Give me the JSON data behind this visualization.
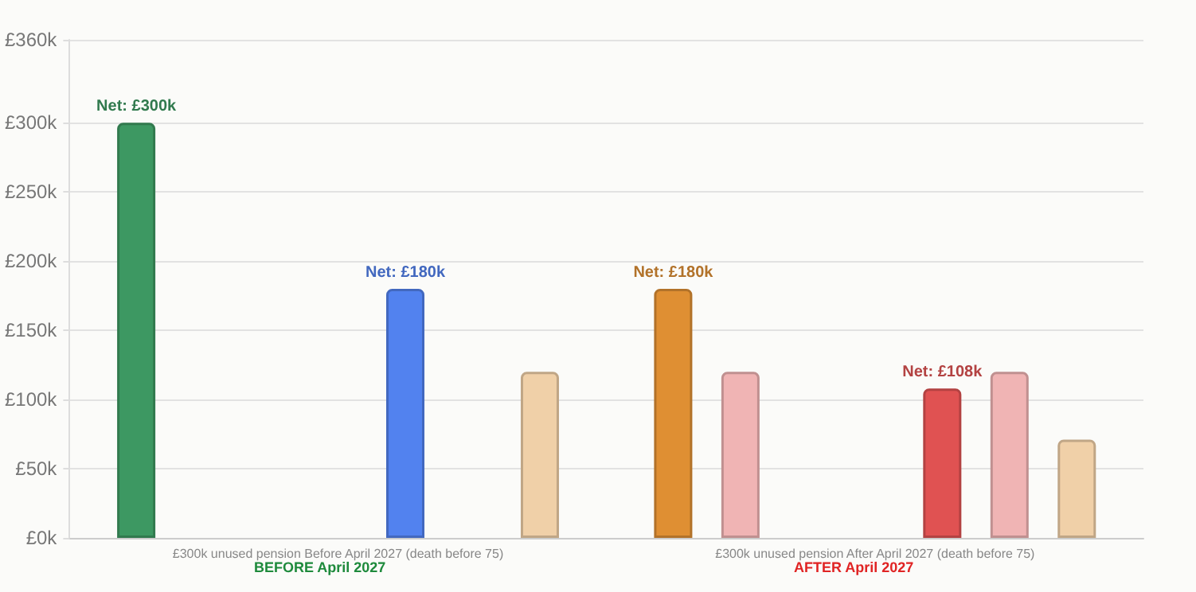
{
  "chart_data": {
    "type": "bar",
    "categories": [
      "£300k unused pension Before April 2027 (death before 75)",
      "£300k unused pension After April 2027 (death before 75)"
    ],
    "series": [
      {
        "values": [
          300,
          180
        ],
        "colors": [
          "#3d9862",
          "#df8f33"
        ],
        "value_labels": [
          "Net: £300k",
          "Net: £180k"
        ]
      },
      {
        "values": [
          null,
          120
        ],
        "colors": [
          null,
          "#f0b4b4"
        ]
      },
      {
        "values": [
          null,
          null
        ]
      },
      {
        "values": [
          null,
          null
        ]
      },
      {
        "values": [
          180,
          108
        ],
        "colors": [
          "#5282ef",
          "#e05252"
        ],
        "value_labels": [
          "Net: £180k",
          "Net: £108k"
        ]
      },
      {
        "values": [
          null,
          120
        ],
        "colors": [
          null,
          "#f0b4b4"
        ]
      },
      {
        "values": [
          120,
          71
        ],
        "colors": [
          "#f0d0a8",
          "#f0d0a8"
        ]
      }
    ],
    "ylim": [
      0,
      360
    ],
    "yticks": [
      {
        "value": 0,
        "label": "£0k"
      },
      {
        "value": 50,
        "label": "£50k"
      },
      {
        "value": 100,
        "label": "£100k"
      },
      {
        "value": 150,
        "label": "£150k"
      },
      {
        "value": 200,
        "label": "£200k"
      },
      {
        "value": 250,
        "label": "£250k"
      },
      {
        "value": 300,
        "label": "£300k"
      },
      {
        "value": 360,
        "label": "£360k"
      }
    ],
    "grid": "y",
    "annotations": [
      "BEFORE April 2027",
      "AFTER April 2027"
    ]
  }
}
